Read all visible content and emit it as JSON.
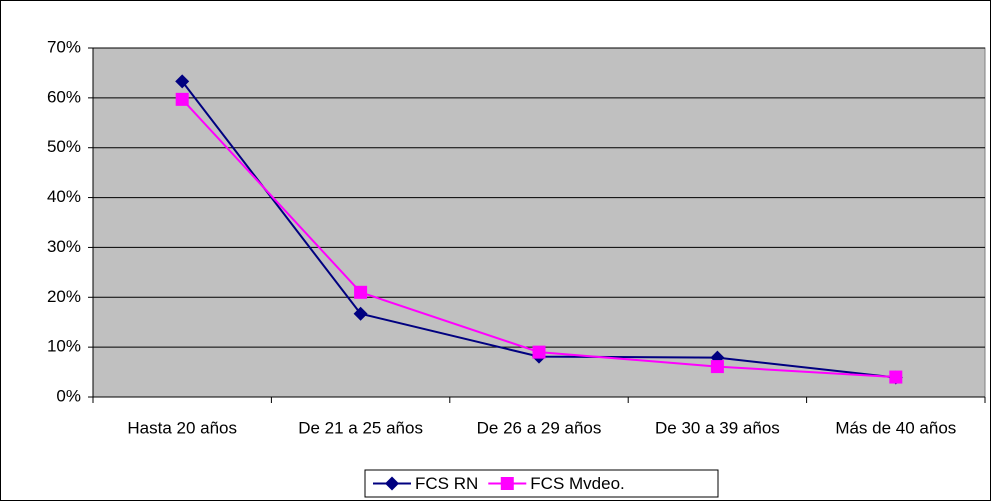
{
  "chart_data": {
    "type": "line",
    "categories": [
      "Hasta 20 años",
      "De 21 a 25 años",
      "De 26 a 29 años",
      "De 30 a 39 años",
      "Más de 40 años"
    ],
    "series": [
      {
        "name": "FCS RN",
        "color": "#000080",
        "marker": "diamond",
        "values": [
          63.3,
          16.7,
          8.1,
          7.9,
          3.9
        ]
      },
      {
        "name": "FCS Mvdeo.",
        "color": "#ff00ff",
        "marker": "square",
        "values": [
          59.7,
          21.0,
          9.0,
          6.1,
          4.0
        ]
      }
    ],
    "ylim": [
      0,
      70
    ],
    "yticks": [
      {
        "value": 0,
        "label": "0%"
      },
      {
        "value": 10,
        "label": "10%"
      },
      {
        "value": 20,
        "label": "20%"
      },
      {
        "value": 30,
        "label": "30%"
      },
      {
        "value": 40,
        "label": "40%"
      },
      {
        "value": 50,
        "label": "50%"
      },
      {
        "value": 60,
        "label": "60%"
      },
      {
        "value": 70,
        "label": "70%"
      }
    ],
    "grid": true,
    "legend": "bottom"
  }
}
